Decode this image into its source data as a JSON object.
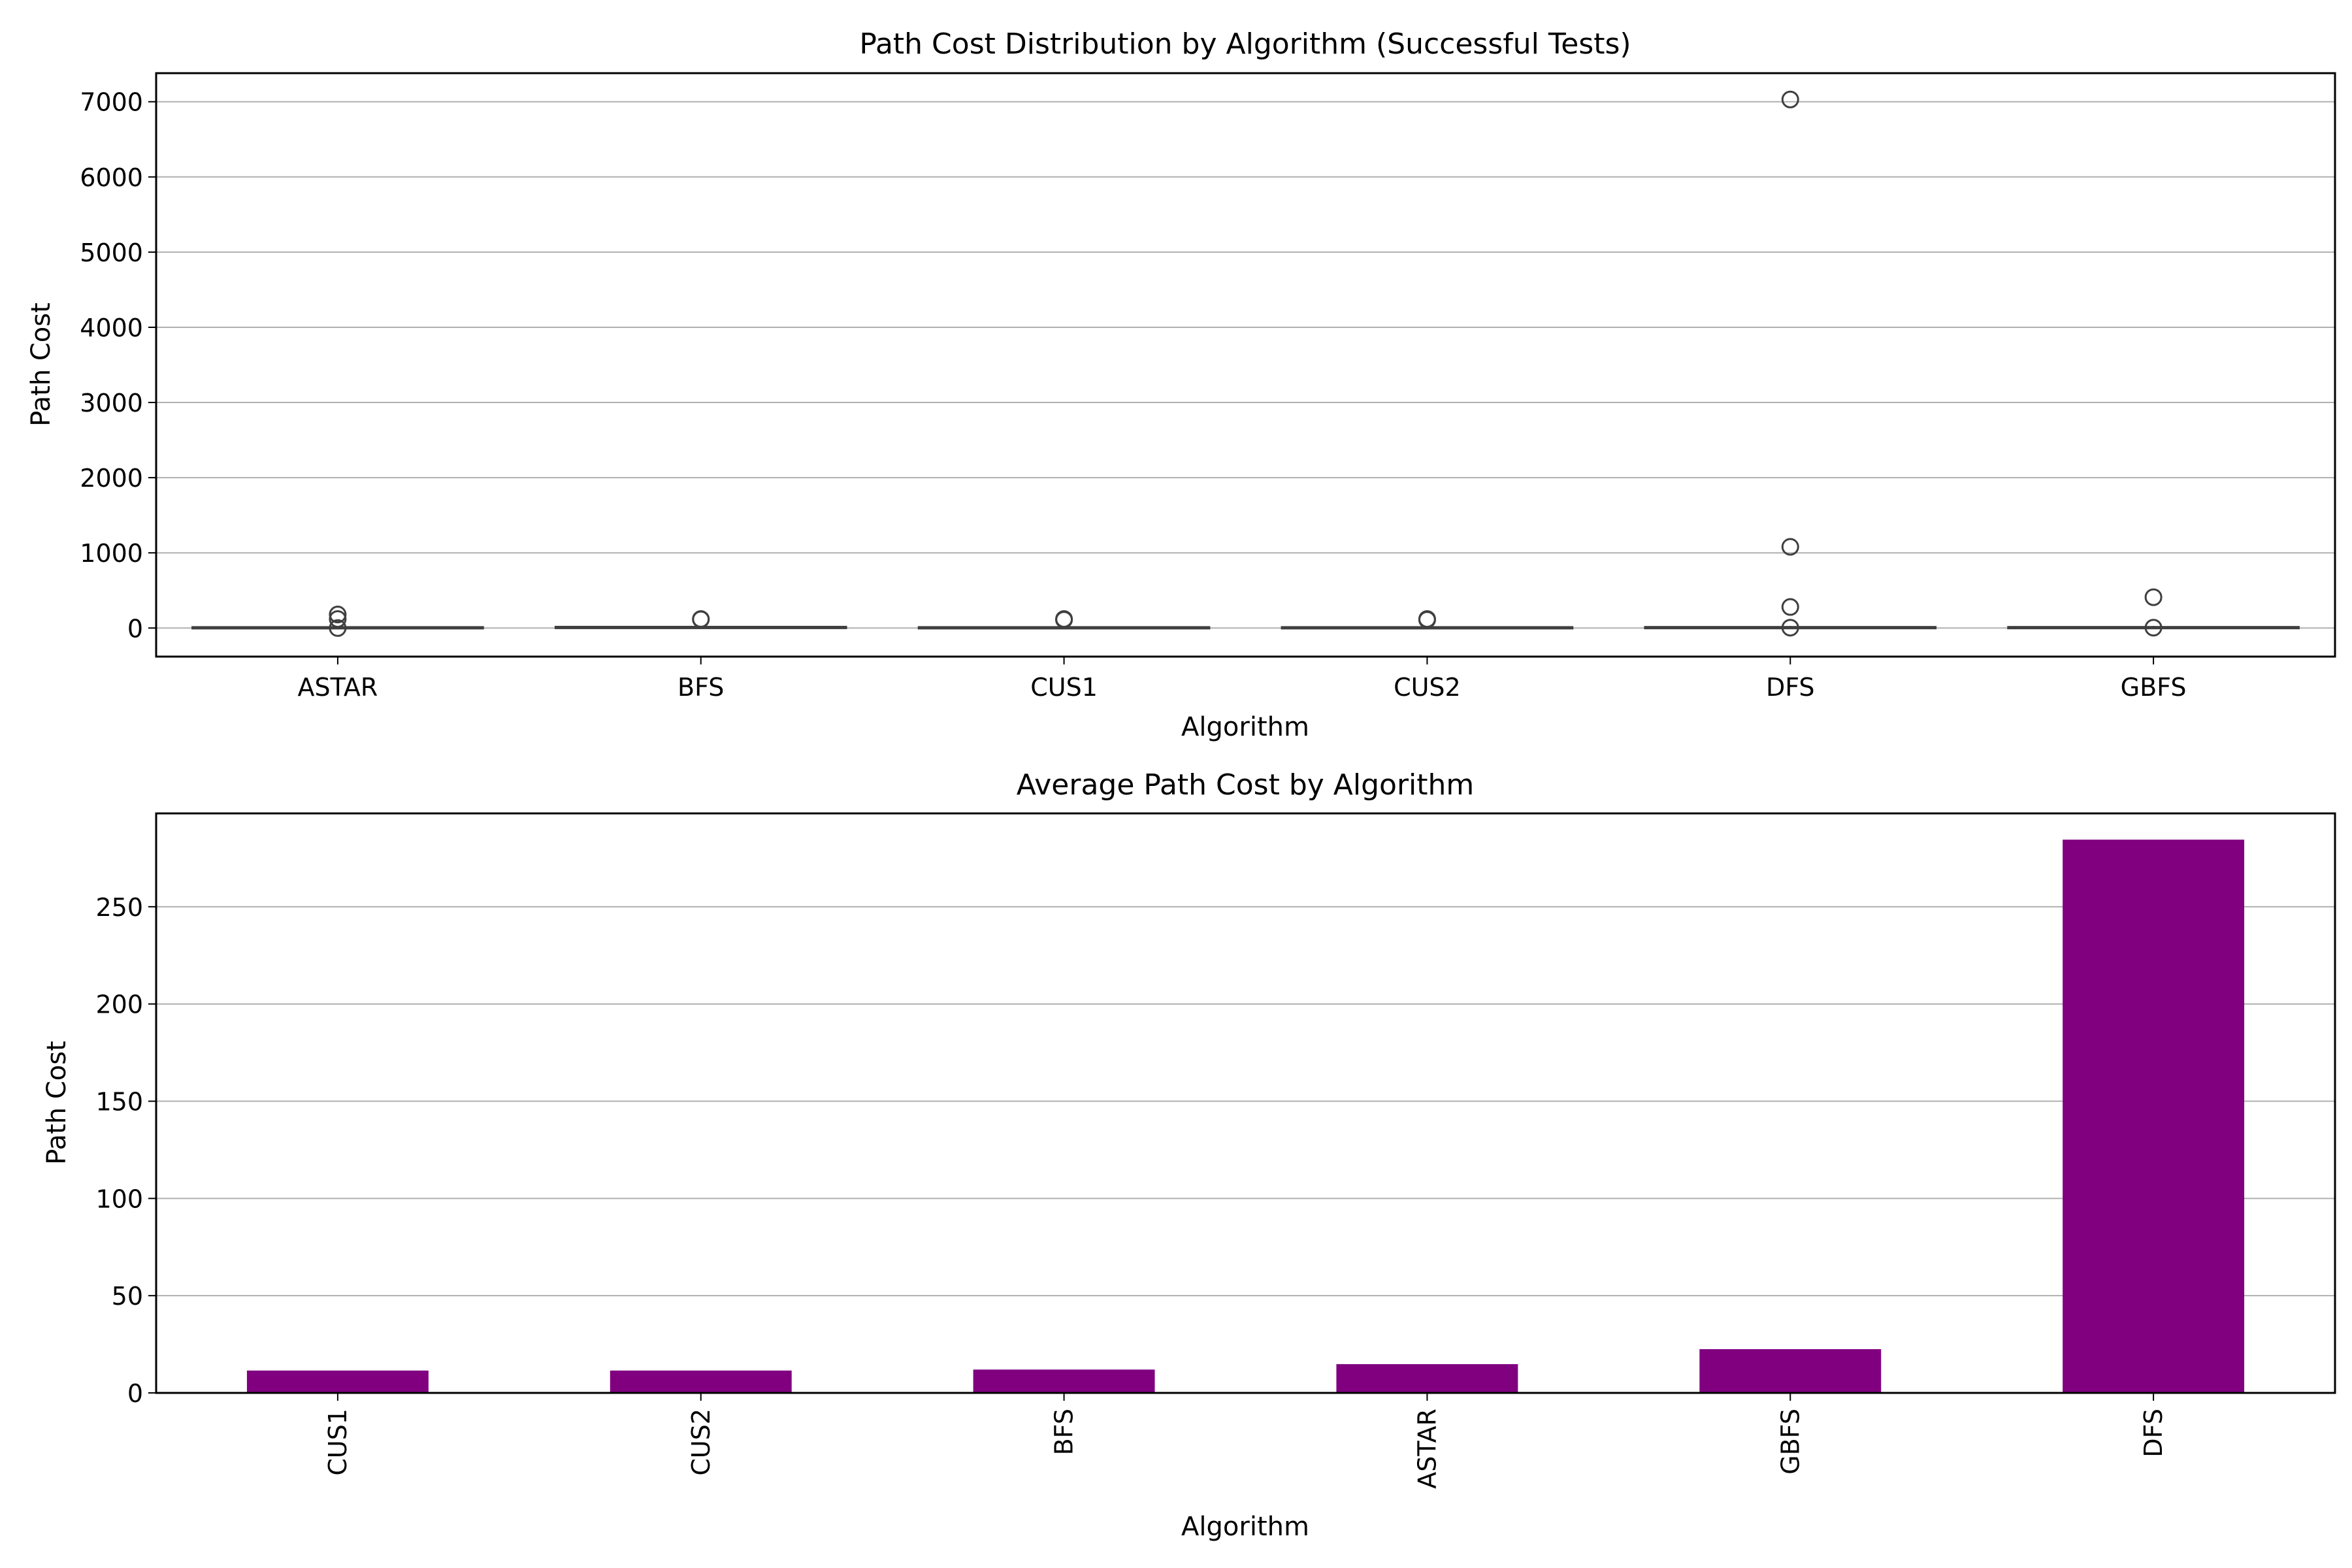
{
  "chart_data": [
    {
      "type": "box",
      "title": "Path Cost Distribution by Algorithm (Successful Tests)",
      "xlabel": "Algorithm",
      "ylabel": "Path Cost",
      "categories": [
        "ASTAR",
        "BFS",
        "CUS1",
        "CUS2",
        "DFS",
        "GBFS"
      ],
      "ylim": [
        -380,
        7380
      ],
      "yticks": [
        0,
        1000,
        2000,
        3000,
        4000,
        5000,
        6000,
        7000
      ],
      "grid": "y",
      "boxes": [
        {
          "category": "ASTAR",
          "q1": 3,
          "median": 6,
          "q3": 12,
          "whisker_low": 1,
          "whisker_high": 25,
          "outliers": [
            180,
            120,
            0
          ]
        },
        {
          "category": "BFS",
          "q1": 4,
          "median": 8,
          "q3": 16,
          "whisker_low": 1,
          "whisker_high": 30,
          "outliers": [
            120,
            115
          ]
        },
        {
          "category": "CUS1",
          "q1": 3,
          "median": 6,
          "q3": 12,
          "whisker_low": 1,
          "whisker_high": 22,
          "outliers": [
            120,
            110
          ]
        },
        {
          "category": "CUS2",
          "q1": 3,
          "median": 6,
          "q3": 12,
          "whisker_low": 1,
          "whisker_high": 22,
          "outliers": [
            120,
            110
          ]
        },
        {
          "category": "DFS",
          "q1": 3,
          "median": 6,
          "q3": 14,
          "whisker_low": 1,
          "whisker_high": 28,
          "outliers": [
            7030,
            1080,
            280,
            5
          ]
        },
        {
          "category": "GBFS",
          "q1": 3,
          "median": 6,
          "q3": 14,
          "whisker_low": 1,
          "whisker_high": 28,
          "outliers": [
            410,
            5
          ]
        }
      ]
    },
    {
      "type": "bar",
      "title": "Average Path Cost by Algorithm",
      "xlabel": "Algorithm",
      "ylabel": "Path Cost",
      "categories": [
        "CUS1",
        "CUS2",
        "BFS",
        "ASTAR",
        "GBFS",
        "DFS"
      ],
      "values": [
        11.5,
        11.5,
        12,
        14.8,
        22.5,
        284.5
      ],
      "ylim": [
        0,
        298
      ],
      "yticks": [
        0,
        50,
        100,
        150,
        200,
        250
      ],
      "grid": "y",
      "bar_color": "#800080"
    }
  ]
}
